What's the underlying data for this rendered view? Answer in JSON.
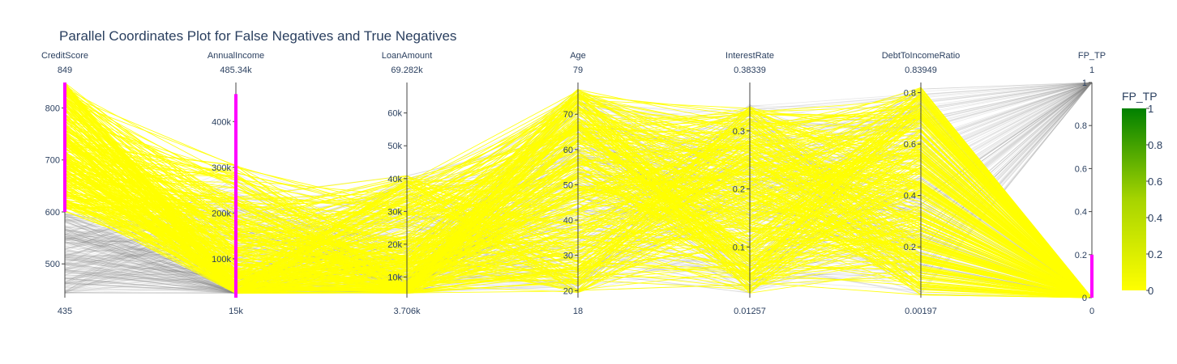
{
  "chart_data": {
    "type": "parallel_coordinates",
    "title": "Parallel Coordinates Plot for False Negatives and True Negatives",
    "dimensions": [
      {
        "name": "CreditScore",
        "min_label": "435",
        "max_label": "849",
        "range": [
          435,
          849
        ],
        "ticks": [
          {
            "v": 500,
            "l": "500"
          },
          {
            "v": 600,
            "l": "600"
          },
          {
            "v": 700,
            "l": "700"
          },
          {
            "v": 800,
            "l": "800"
          }
        ],
        "constraint": [
          600,
          849
        ]
      },
      {
        "name": "AnnualIncome",
        "min_label": "15k",
        "max_label": "485.34k",
        "range": [
          15000,
          485340
        ],
        "ticks": [
          {
            "v": 100000,
            "l": "100k"
          },
          {
            "v": 200000,
            "l": "200k"
          },
          {
            "v": 300000,
            "l": "300k"
          },
          {
            "v": 400000,
            "l": "400k"
          }
        ],
        "constraint": [
          15000,
          460000
        ]
      },
      {
        "name": "LoanAmount",
        "min_label": "3.706k",
        "max_label": "69.282k",
        "range": [
          3706,
          69282
        ],
        "ticks": [
          {
            "v": 10000,
            "l": "10k"
          },
          {
            "v": 20000,
            "l": "20k"
          },
          {
            "v": 30000,
            "l": "30k"
          },
          {
            "v": 40000,
            "l": "40k"
          },
          {
            "v": 50000,
            "l": "50k"
          },
          {
            "v": 60000,
            "l": "60k"
          }
        ],
        "constraint": null
      },
      {
        "name": "Age",
        "min_label": "18",
        "max_label": "79",
        "range": [
          18,
          79
        ],
        "ticks": [
          {
            "v": 20,
            "l": "20"
          },
          {
            "v": 30,
            "l": "30"
          },
          {
            "v": 40,
            "l": "40"
          },
          {
            "v": 50,
            "l": "50"
          },
          {
            "v": 60,
            "l": "60"
          },
          {
            "v": 70,
            "l": "70"
          }
        ],
        "constraint": null
      },
      {
        "name": "InterestRate",
        "min_label": "0.01257",
        "max_label": "0.38339",
        "range": [
          0.01257,
          0.38339
        ],
        "ticks": [
          {
            "v": 0.1,
            "l": "0.1"
          },
          {
            "v": 0.2,
            "l": "0.2"
          },
          {
            "v": 0.3,
            "l": "0.3"
          }
        ],
        "constraint": null
      },
      {
        "name": "DebtToIncomeRatio",
        "min_label": "0.00197",
        "max_label": "0.83949",
        "range": [
          0.00197,
          0.83949
        ],
        "ticks": [
          {
            "v": 0.2,
            "l": "0.2"
          },
          {
            "v": 0.4,
            "l": "0.4"
          },
          {
            "v": 0.6,
            "l": "0.6"
          },
          {
            "v": 0.8,
            "l": "0.8"
          }
        ],
        "constraint": null
      },
      {
        "name": "FP_TP",
        "min_label": "0",
        "max_label": "1",
        "range": [
          0,
          1
        ],
        "ticks": [
          {
            "v": 0,
            "l": "0"
          },
          {
            "v": 0.2,
            "l": "0.2"
          },
          {
            "v": 0.4,
            "l": "0.4"
          },
          {
            "v": 0.6,
            "l": "0.6"
          },
          {
            "v": 0.8,
            "l": "0.8"
          },
          {
            "v": 1,
            "l": "1"
          }
        ],
        "constraint": [
          0,
          0.2
        ]
      }
    ],
    "colorbar": {
      "title": "FP_TP",
      "ticks": [
        "0",
        "0.2",
        "0.4",
        "0.6",
        "0.8",
        "1"
      ],
      "colors": [
        "#ffff00",
        "#008000"
      ]
    },
    "selected_color": "#ffff00",
    "unselected_color": "#7f7f7f",
    "constraint_color": "#ff00ff"
  }
}
